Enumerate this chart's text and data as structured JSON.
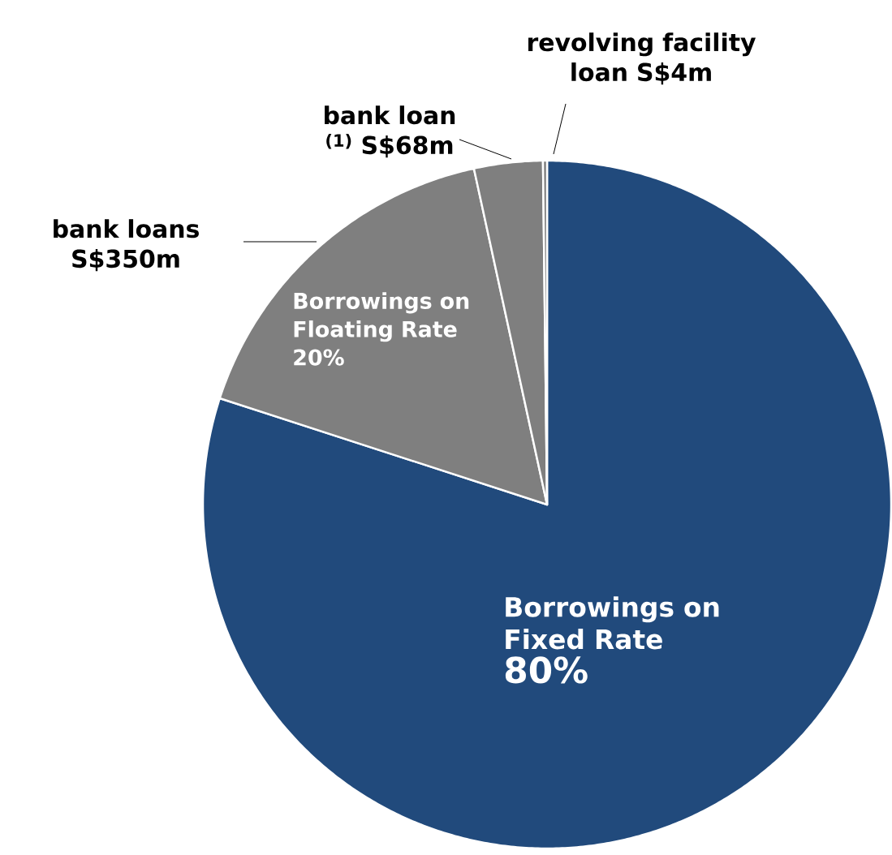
{
  "chart_data": {
    "type": "pie",
    "categories": [
      "Borrowings on Fixed Rate",
      "bank loans S$350m",
      "bank loan $^{(1)}$ S$68m",
      "revolving facility loan S$4m"
    ],
    "values": [
      80,
      16.59,
      3.22,
      0.19
    ],
    "value_labels": [
      "80%",
      null,
      null,
      null
    ],
    "colors": [
      "#214a7c",
      "#7f7f7f",
      "#7f7f7f",
      "#7f7f7f"
    ],
    "annotations": [
      "Borrowings on Floating Rate 20%"
    ]
  }
}
